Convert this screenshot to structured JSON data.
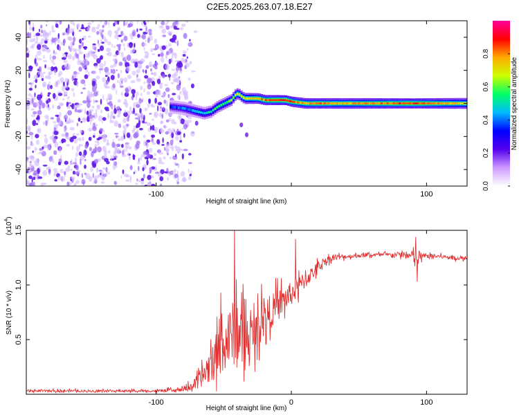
{
  "page_title": "C2E5.2025.263.07.18.E27",
  "chart_data": [
    {
      "type": "heatmap",
      "name": "spectrogram",
      "title": "C2E5.2025.263.07.18.E27",
      "xlabel": "Height of straight line (km)",
      "ylabel": "Frequency (Hz)",
      "xlim": [
        -196,
        130
      ],
      "ylim": [
        -50,
        50
      ],
      "x_ticks": [
        -100,
        0,
        100
      ],
      "x_tick_labels": [
        "-100",
        "",
        "100"
      ],
      "y_ticks": [
        -40,
        -20,
        0,
        20,
        40
      ],
      "y_tick_labels": [
        "-40",
        "-20",
        "0",
        "20",
        "40"
      ],
      "noise_region": [
        -196,
        -85
      ],
      "signal_track": {
        "x": [
          -90,
          -80,
          -75,
          -70,
          -65,
          -60,
          -55,
          -50,
          -45,
          -42,
          -40,
          -37,
          -35,
          -30,
          -25,
          -20,
          -15,
          -10,
          -5,
          0,
          10,
          20,
          30,
          50,
          70,
          90,
          110,
          130
        ],
        "freq": [
          -2,
          -3,
          -4,
          -5,
          -6,
          -5,
          -2,
          0,
          2,
          5,
          6,
          4,
          3,
          3,
          3,
          2,
          2,
          2,
          2,
          1,
          0,
          0,
          0,
          0,
          0,
          0,
          0,
          0
        ],
        "peak_amplitude": [
          0.35,
          0.4,
          0.45,
          0.5,
          0.5,
          0.55,
          0.6,
          0.6,
          0.65,
          0.7,
          0.75,
          0.7,
          0.75,
          0.8,
          0.85,
          0.9,
          0.95,
          0.95,
          1.0,
          0.9,
          0.85,
          0.9,
          0.85,
          0.85,
          0.9,
          0.95,
          0.85,
          0.8
        ]
      },
      "colorbar": {
        "label": "Normalized spectral amplitude",
        "range": [
          0,
          1
        ],
        "ticks": [
          0.0,
          0.2,
          0.4,
          0.6,
          0.8
        ],
        "tick_labels": [
          "0.0",
          "0.2",
          "0.4",
          "0.6",
          "0.8"
        ],
        "colors": [
          "#ffffff",
          "#cc99ff",
          "#5500ee",
          "#0000ff",
          "#00bbff",
          "#00ff66",
          "#ccff00",
          "#ffaa00",
          "#ff0000",
          "#ff0099"
        ]
      }
    },
    {
      "type": "line",
      "name": "snr",
      "xlabel": "Height of straight line (km)",
      "ylabel": "SNR (10 * v/v)",
      "y_exponent_label": "(x10",
      "y_exponent_power": "4",
      "y_exponent_close": ")",
      "xlim": [
        -196,
        130
      ],
      "ylim": [
        0,
        15000
      ],
      "x_ticks": [
        -100,
        0,
        100
      ],
      "x_tick_labels": [
        "-100",
        "0",
        "100"
      ],
      "y_ticks": [
        5000,
        10000,
        15000
      ],
      "y_tick_labels": [
        "0.5",
        "1.0",
        "1.5"
      ],
      "color": "#e03030",
      "series": [
        {
          "name": "SNR",
          "x": [
            -196,
            -150,
            -100,
            -80,
            -70,
            -65,
            -60,
            -55,
            -50,
            -45,
            -42,
            -40,
            -37,
            -35,
            -30,
            -25,
            -20,
            -15,
            -10,
            -5,
            0,
            5,
            10,
            15,
            20,
            25,
            30,
            40,
            50,
            60,
            70,
            80,
            85,
            90,
            92,
            95,
            100,
            110,
            120,
            130
          ],
          "y": [
            300,
            300,
            300,
            400,
            1000,
            1800,
            2700,
            3600,
            4500,
            5200,
            5800,
            6000,
            5500,
            5200,
            5200,
            6000,
            7000,
            7600,
            8100,
            8700,
            9200,
            9700,
            10500,
            11000,
            11700,
            12200,
            12500,
            12600,
            12700,
            12750,
            12750,
            12800,
            12700,
            12600,
            12500,
            12600,
            12650,
            12600,
            12500,
            12400
          ],
          "spread": [
            150,
            150,
            150,
            250,
            800,
            1500,
            2500,
            3000,
            3500,
            4000,
            4500,
            4500,
            4000,
            3500,
            2800,
            2500,
            2500,
            2200,
            2000,
            1800,
            1500,
            1400,
            1200,
            900,
            700,
            500,
            400,
            300,
            250,
            250,
            250,
            300,
            500,
            800,
            1200,
            600,
            300,
            250,
            250,
            250
          ],
          "spikes": [
            {
              "x": -42,
              "y": 15500
            },
            {
              "x": -52,
              "y": 9300
            },
            {
              "x": -22,
              "y": 10100
            },
            {
              "x": 3,
              "y": 14200
            },
            {
              "x": 92,
              "y": 14400
            },
            {
              "x": 93,
              "y": 10300
            }
          ]
        }
      ]
    }
  ]
}
